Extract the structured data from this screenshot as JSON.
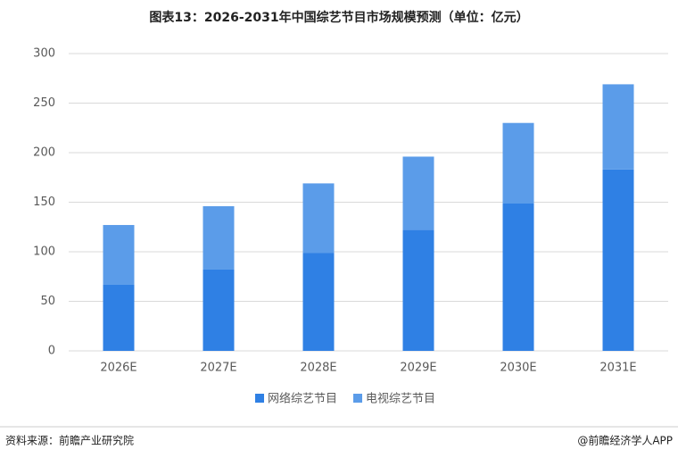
{
  "chart_data": {
    "type": "stacked_bar",
    "title": "图表13：2026-2031年中国综艺节目市场规模预测（单位：亿元）",
    "categories": [
      "2026E",
      "2027E",
      "2028E",
      "2029E",
      "2030E",
      "2031E"
    ],
    "series": [
      {
        "name": "网络综艺节目",
        "color": "#2f80e4",
        "values": [
          67,
          82,
          99,
          122,
          149,
          183
        ]
      },
      {
        "name": "电视综艺节目",
        "color": "#5b9ce9",
        "values": [
          60,
          64,
          70,
          74,
          81,
          86
        ]
      }
    ],
    "ylim": [
      0,
      300
    ],
    "yticks": [
      0,
      50,
      100,
      150,
      200,
      250,
      300
    ],
    "grid": true,
    "legend": "bottom",
    "source": "资料来源：前瞻产业研究院",
    "credit": "@前瞻经济学人APP"
  }
}
